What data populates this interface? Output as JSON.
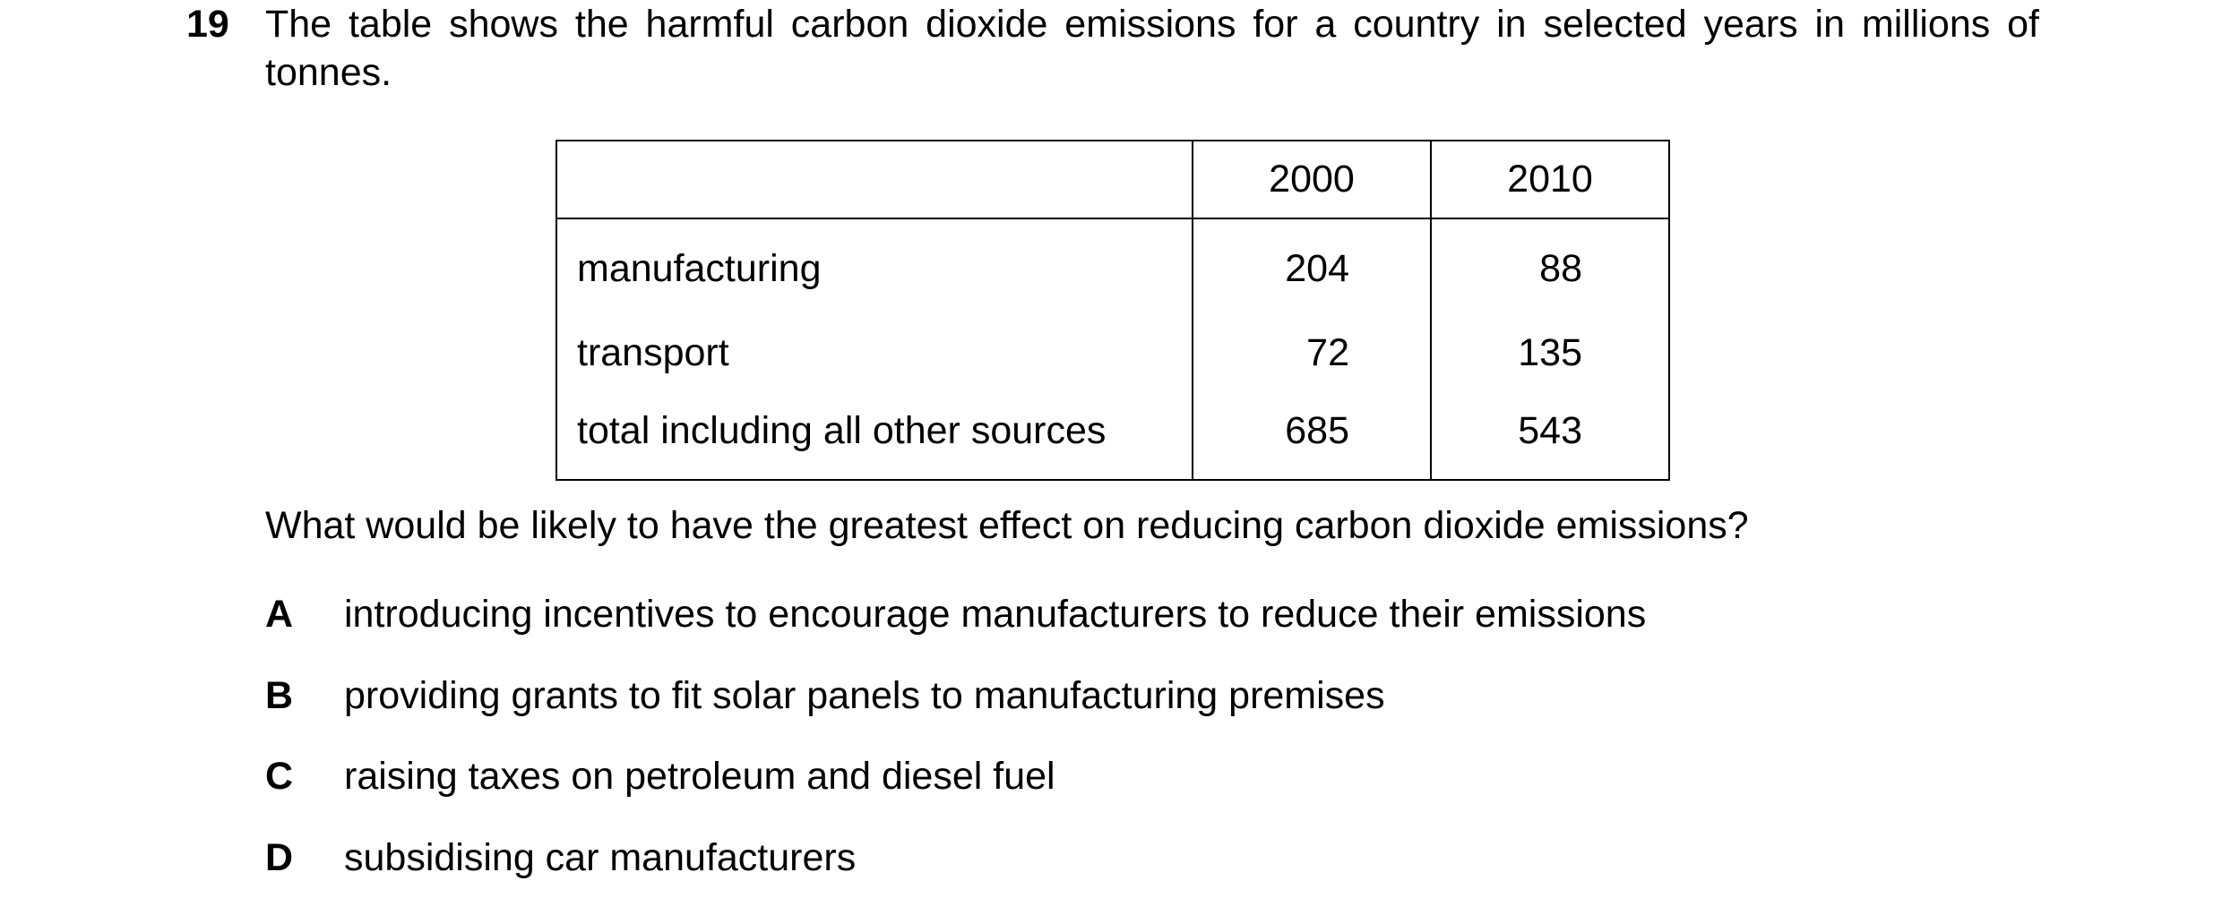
{
  "question": {
    "number": "19",
    "stem": "The table shows the harmful carbon dioxide emissions for a country in selected years in millions of tonnes.",
    "prompt": "What would be likely to have the greatest effect on reducing carbon dioxide emissions?"
  },
  "table": {
    "header": [
      "",
      "2000",
      "2010"
    ],
    "rows": [
      {
        "label": "manufacturing",
        "y2000": "204",
        "y2010": "88"
      },
      {
        "label": "transport",
        "y2000": "72",
        "y2010": "135"
      },
      {
        "label": "total including all other sources",
        "y2000": "685",
        "y2010": "543"
      }
    ]
  },
  "options": [
    {
      "letter": "A",
      "text": "introducing incentives to encourage manufacturers to reduce their emissions"
    },
    {
      "letter": "B",
      "text": "providing grants to fit solar panels to manufacturing premises"
    },
    {
      "letter": "C",
      "text": "raising taxes on petroleum and diesel fuel"
    },
    {
      "letter": "D",
      "text": "subsidising car manufacturers"
    }
  ]
}
